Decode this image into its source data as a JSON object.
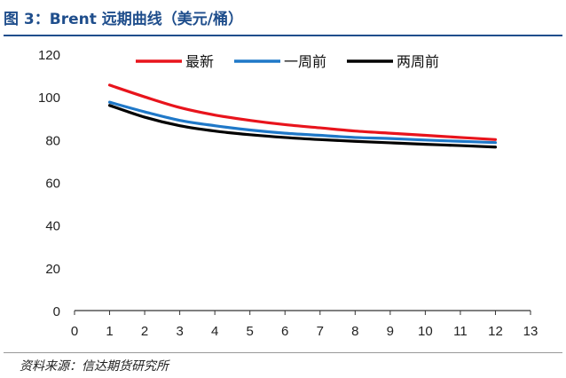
{
  "title": "图 3：Brent 远期曲线（美元/桶）",
  "source": "资料来源：信达期货研究所",
  "chart_data": {
    "type": "line",
    "xlabel": "",
    "ylabel": "",
    "xlim": [
      0,
      13
    ],
    "ylim": [
      0,
      120
    ],
    "x_ticks": [
      0,
      1,
      2,
      3,
      4,
      5,
      6,
      7,
      8,
      9,
      10,
      11,
      12,
      13
    ],
    "y_ticks": [
      0,
      20,
      40,
      60,
      80,
      100,
      120
    ],
    "grid": false,
    "legend_position": "top",
    "x": [
      1,
      2,
      3,
      4,
      5,
      6,
      7,
      8,
      9,
      10,
      11,
      12
    ],
    "series": [
      {
        "name": "最新",
        "color": "#e8141c",
        "values": [
          105.5,
          100,
          95,
          91.5,
          89,
          87,
          85.5,
          84,
          83,
          82,
          81,
          80
        ]
      },
      {
        "name": "一周前",
        "color": "#1f78c8",
        "values": [
          97.5,
          93,
          89,
          86.5,
          84.5,
          83,
          82,
          81,
          80.5,
          79.8,
          79.2,
          78.6
        ]
      },
      {
        "name": "两周前",
        "color": "#000000",
        "values": [
          96,
          90.5,
          86.5,
          84,
          82.3,
          81,
          80,
          79.2,
          78.5,
          77.8,
          77.2,
          76.5
        ]
      }
    ]
  }
}
